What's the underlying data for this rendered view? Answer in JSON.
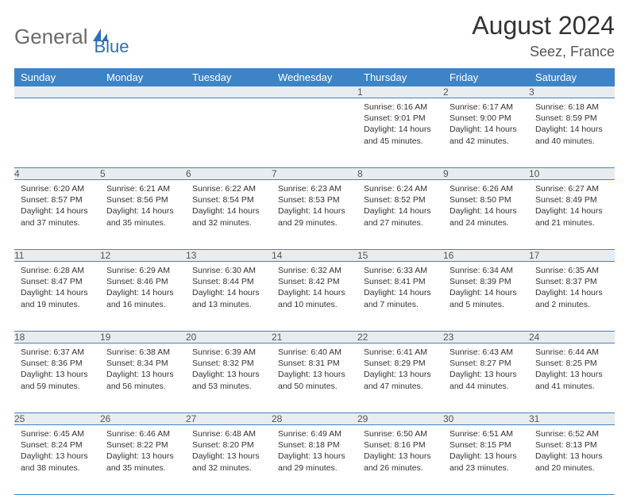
{
  "logo": {
    "word1": "General",
    "word2": "Blue",
    "icon_color": "#2f6fb0",
    "text1_color": "#6a6a6a"
  },
  "title": "August 2024",
  "location": "Seez, France",
  "colors": {
    "header_bg": "#3d84c6",
    "header_text": "#ffffff",
    "daynum_bg": "#e9ecef",
    "rule": "#3d84c6",
    "body_text": "#333333",
    "background": "#ffffff"
  },
  "weekdays": [
    "Sunday",
    "Monday",
    "Tuesday",
    "Wednesday",
    "Thursday",
    "Friday",
    "Saturday"
  ],
  "weeks": [
    [
      null,
      null,
      null,
      null,
      {
        "n": "1",
        "sunrise": "6:16 AM",
        "sunset": "9:01 PM",
        "daylight": "14 hours and 45 minutes."
      },
      {
        "n": "2",
        "sunrise": "6:17 AM",
        "sunset": "9:00 PM",
        "daylight": "14 hours and 42 minutes."
      },
      {
        "n": "3",
        "sunrise": "6:18 AM",
        "sunset": "8:59 PM",
        "daylight": "14 hours and 40 minutes."
      }
    ],
    [
      {
        "n": "4",
        "sunrise": "6:20 AM",
        "sunset": "8:57 PM",
        "daylight": "14 hours and 37 minutes."
      },
      {
        "n": "5",
        "sunrise": "6:21 AM",
        "sunset": "8:56 PM",
        "daylight": "14 hours and 35 minutes."
      },
      {
        "n": "6",
        "sunrise": "6:22 AM",
        "sunset": "8:54 PM",
        "daylight": "14 hours and 32 minutes."
      },
      {
        "n": "7",
        "sunrise": "6:23 AM",
        "sunset": "8:53 PM",
        "daylight": "14 hours and 29 minutes."
      },
      {
        "n": "8",
        "sunrise": "6:24 AM",
        "sunset": "8:52 PM",
        "daylight": "14 hours and 27 minutes."
      },
      {
        "n": "9",
        "sunrise": "6:26 AM",
        "sunset": "8:50 PM",
        "daylight": "14 hours and 24 minutes."
      },
      {
        "n": "10",
        "sunrise": "6:27 AM",
        "sunset": "8:49 PM",
        "daylight": "14 hours and 21 minutes."
      }
    ],
    [
      {
        "n": "11",
        "sunrise": "6:28 AM",
        "sunset": "8:47 PM",
        "daylight": "14 hours and 19 minutes."
      },
      {
        "n": "12",
        "sunrise": "6:29 AM",
        "sunset": "8:46 PM",
        "daylight": "14 hours and 16 minutes."
      },
      {
        "n": "13",
        "sunrise": "6:30 AM",
        "sunset": "8:44 PM",
        "daylight": "14 hours and 13 minutes."
      },
      {
        "n": "14",
        "sunrise": "6:32 AM",
        "sunset": "8:42 PM",
        "daylight": "14 hours and 10 minutes."
      },
      {
        "n": "15",
        "sunrise": "6:33 AM",
        "sunset": "8:41 PM",
        "daylight": "14 hours and 7 minutes."
      },
      {
        "n": "16",
        "sunrise": "6:34 AM",
        "sunset": "8:39 PM",
        "daylight": "14 hours and 5 minutes."
      },
      {
        "n": "17",
        "sunrise": "6:35 AM",
        "sunset": "8:37 PM",
        "daylight": "14 hours and 2 minutes."
      }
    ],
    [
      {
        "n": "18",
        "sunrise": "6:37 AM",
        "sunset": "8:36 PM",
        "daylight": "13 hours and 59 minutes."
      },
      {
        "n": "19",
        "sunrise": "6:38 AM",
        "sunset": "8:34 PM",
        "daylight": "13 hours and 56 minutes."
      },
      {
        "n": "20",
        "sunrise": "6:39 AM",
        "sunset": "8:32 PM",
        "daylight": "13 hours and 53 minutes."
      },
      {
        "n": "21",
        "sunrise": "6:40 AM",
        "sunset": "8:31 PM",
        "daylight": "13 hours and 50 minutes."
      },
      {
        "n": "22",
        "sunrise": "6:41 AM",
        "sunset": "8:29 PM",
        "daylight": "13 hours and 47 minutes."
      },
      {
        "n": "23",
        "sunrise": "6:43 AM",
        "sunset": "8:27 PM",
        "daylight": "13 hours and 44 minutes."
      },
      {
        "n": "24",
        "sunrise": "6:44 AM",
        "sunset": "8:25 PM",
        "daylight": "13 hours and 41 minutes."
      }
    ],
    [
      {
        "n": "25",
        "sunrise": "6:45 AM",
        "sunset": "8:24 PM",
        "daylight": "13 hours and 38 minutes."
      },
      {
        "n": "26",
        "sunrise": "6:46 AM",
        "sunset": "8:22 PM",
        "daylight": "13 hours and 35 minutes."
      },
      {
        "n": "27",
        "sunrise": "6:48 AM",
        "sunset": "8:20 PM",
        "daylight": "13 hours and 32 minutes."
      },
      {
        "n": "28",
        "sunrise": "6:49 AM",
        "sunset": "8:18 PM",
        "daylight": "13 hours and 29 minutes."
      },
      {
        "n": "29",
        "sunrise": "6:50 AM",
        "sunset": "8:16 PM",
        "daylight": "13 hours and 26 minutes."
      },
      {
        "n": "30",
        "sunrise": "6:51 AM",
        "sunset": "8:15 PM",
        "daylight": "13 hours and 23 minutes."
      },
      {
        "n": "31",
        "sunrise": "6:52 AM",
        "sunset": "8:13 PM",
        "daylight": "13 hours and 20 minutes."
      }
    ]
  ],
  "labels": {
    "sunrise": "Sunrise:",
    "sunset": "Sunset:",
    "daylight": "Daylight:"
  }
}
